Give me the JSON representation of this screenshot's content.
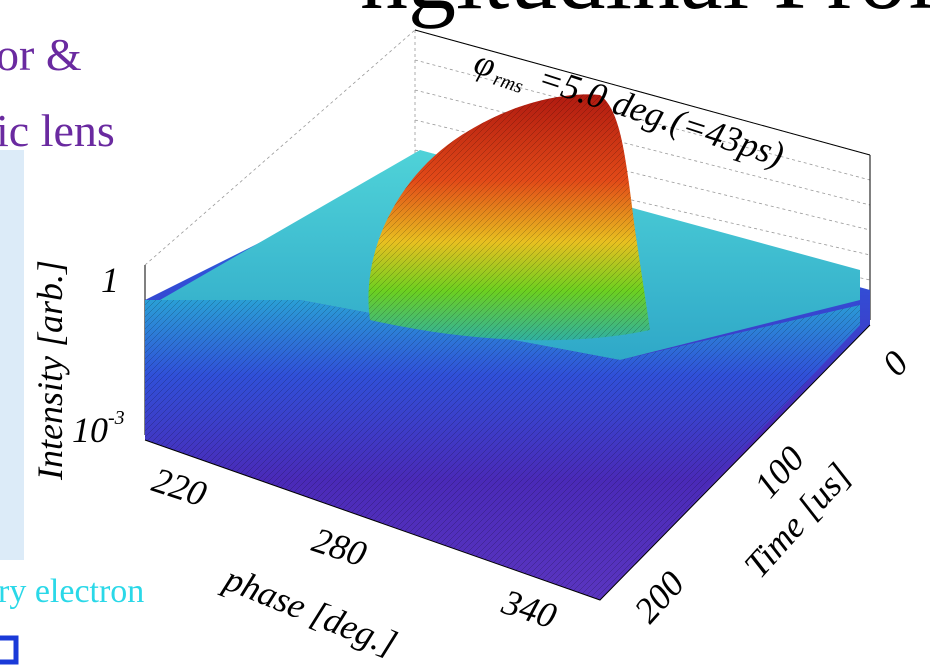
{
  "slide": {
    "title": "ngitudinal Profile)",
    "line1": "or &",
    "line2": "ic lens",
    "line3": "ry electron"
  },
  "plot": {
    "annotation": {
      "symbol": "φ",
      "sub": "rms",
      "text": "=5.0 deg.(=43ps)"
    },
    "z_axis": {
      "title": "Intensity [arb.]",
      "tick_high": "1",
      "tick_low": {
        "base": "10",
        "exp": "-3"
      }
    },
    "x_axis": {
      "title": "phase [deg.]",
      "ticks": [
        "220",
        "280",
        "340"
      ]
    },
    "y_axis": {
      "title": "Time [us]",
      "ticks": [
        "0",
        "100",
        "200"
      ]
    }
  }
}
